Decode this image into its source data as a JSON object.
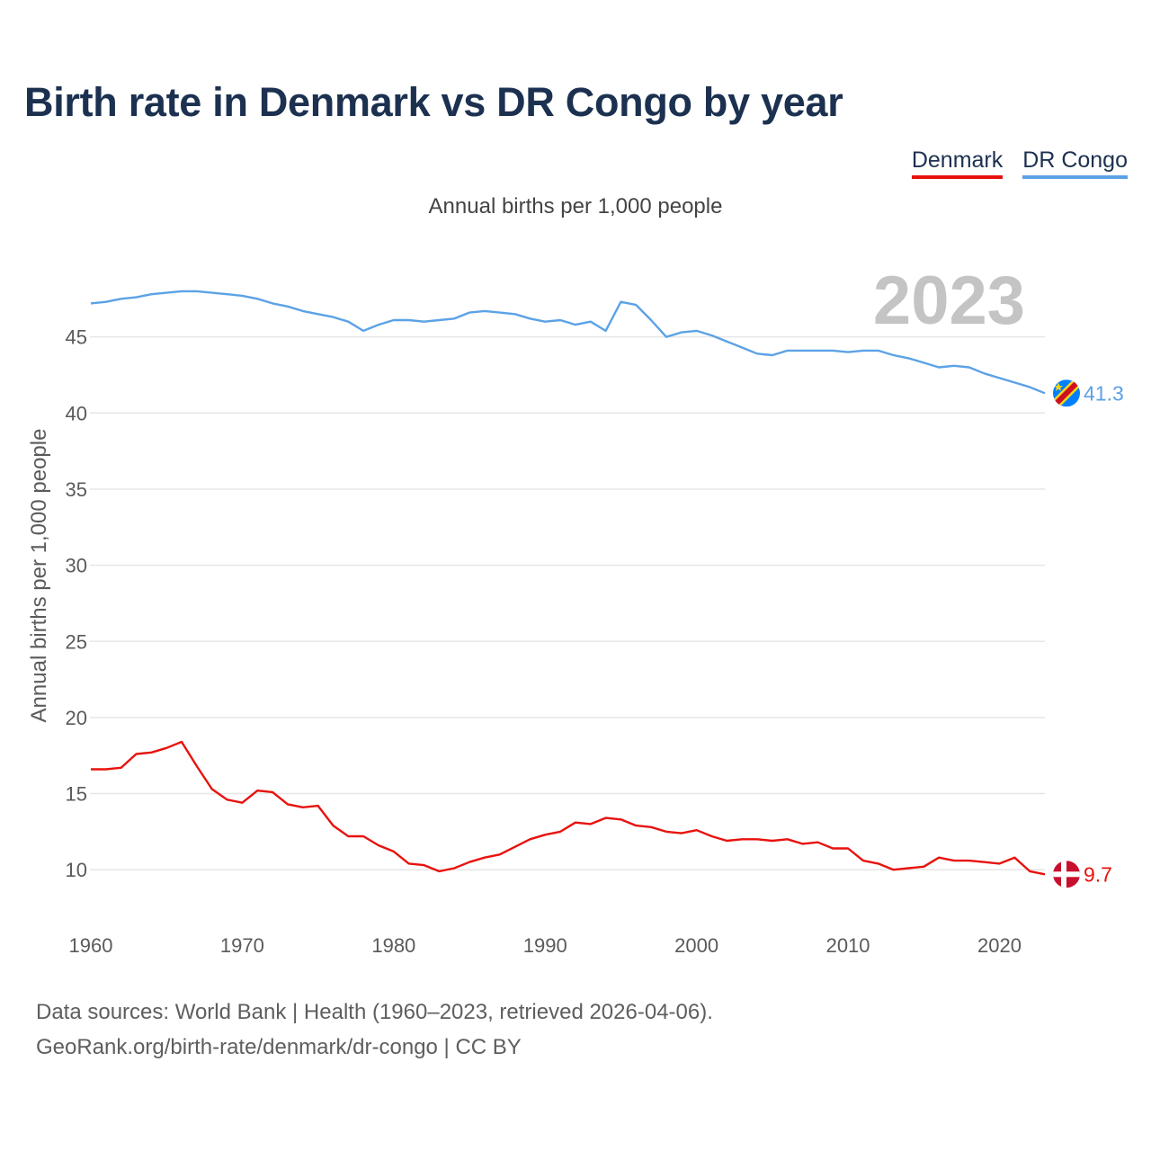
{
  "title": "Birth rate in Denmark vs DR Congo by year",
  "subtitle": "Annual births per 1,000 people",
  "year_label": "2023",
  "legend": [
    {
      "name": "Denmark",
      "color": "#e8120d"
    },
    {
      "name": "DR Congo",
      "color": "#5ba2e6"
    }
  ],
  "chart_data": {
    "type": "line",
    "title": "Birth rate in Denmark vs DR Congo by year",
    "xlabel": "",
    "ylabel": "Annual births per 1,000 people",
    "xlim": [
      1960,
      2023
    ],
    "ylim": [
      7,
      50
    ],
    "xticks": [
      1960,
      1970,
      1980,
      1990,
      2000,
      2010,
      2020
    ],
    "yticks": [
      10,
      15,
      20,
      25,
      30,
      35,
      40,
      45
    ],
    "grid": true,
    "legend_position": "top-right",
    "x": [
      1960,
      1961,
      1962,
      1963,
      1964,
      1965,
      1966,
      1967,
      1968,
      1969,
      1970,
      1971,
      1972,
      1973,
      1974,
      1975,
      1976,
      1977,
      1978,
      1979,
      1980,
      1981,
      1982,
      1983,
      1984,
      1985,
      1986,
      1987,
      1988,
      1989,
      1990,
      1991,
      1992,
      1993,
      1994,
      1995,
      1996,
      1997,
      1998,
      1999,
      2000,
      2001,
      2002,
      2003,
      2004,
      2005,
      2006,
      2007,
      2008,
      2009,
      2010,
      2011,
      2012,
      2013,
      2014,
      2015,
      2016,
      2017,
      2018,
      2019,
      2020,
      2021,
      2022,
      2023
    ],
    "series": [
      {
        "name": "DR Congo",
        "color": "#5ba2e6",
        "end_label": "41.3",
        "values": [
          47.2,
          47.3,
          47.5,
          47.6,
          47.8,
          47.9,
          48.0,
          48.0,
          47.9,
          47.8,
          47.7,
          47.5,
          47.2,
          47.0,
          46.7,
          46.5,
          46.3,
          46.0,
          45.4,
          45.8,
          46.1,
          46.1,
          46.0,
          46.1,
          46.2,
          46.6,
          46.7,
          46.6,
          46.5,
          46.2,
          46.0,
          46.1,
          45.8,
          46.0,
          45.4,
          47.3,
          47.1,
          46.1,
          45.0,
          45.3,
          45.4,
          45.1,
          44.7,
          44.3,
          43.9,
          43.8,
          44.1,
          44.1,
          44.1,
          44.1,
          44.0,
          44.1,
          44.1,
          43.8,
          43.6,
          43.3,
          43.0,
          43.1,
          43.0,
          42.6,
          42.3,
          42.0,
          41.7,
          41.3
        ]
      },
      {
        "name": "Denmark",
        "color": "#e8120d",
        "end_label": "9.7",
        "values": [
          16.6,
          16.6,
          16.7,
          17.6,
          17.7,
          18.0,
          18.4,
          16.8,
          15.3,
          14.6,
          14.4,
          15.2,
          15.1,
          14.3,
          14.1,
          14.2,
          12.9,
          12.2,
          12.2,
          11.6,
          11.2,
          10.4,
          10.3,
          9.9,
          10.1,
          10.5,
          10.8,
          11.0,
          11.5,
          12.0,
          12.3,
          12.5,
          13.1,
          13.0,
          13.4,
          13.3,
          12.9,
          12.8,
          12.5,
          12.4,
          12.6,
          12.2,
          11.9,
          12.0,
          12.0,
          11.9,
          12.0,
          11.7,
          11.8,
          11.4,
          11.4,
          10.6,
          10.4,
          10.0,
          10.1,
          10.2,
          10.8,
          10.6,
          10.6,
          10.5,
          10.4,
          10.8,
          9.9,
          9.7
        ]
      }
    ]
  },
  "footer": {
    "line1": "Data sources: World Bank | Health (1960–2023, retrieved 2026-04-06).",
    "line2": "GeoRank.org/birth-rate/denmark/dr-congo | CC BY"
  }
}
